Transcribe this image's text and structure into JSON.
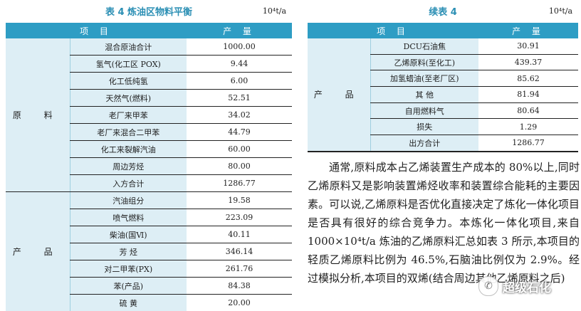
{
  "table4": {
    "caption": "表 4  炼油区物料平衡",
    "unit": "10⁴t/a",
    "header": {
      "item": "项  目",
      "output": "产  量"
    },
    "groups": [
      {
        "label": "原 料",
        "rows": [
          {
            "name": "混合原油合计",
            "value": "1000.00"
          },
          {
            "name": "氢气(化工区 POX)",
            "value": "9.44"
          },
          {
            "name": "化工低纯氢",
            "value": "6.00"
          },
          {
            "name": "天然气(燃料)",
            "value": "52.51"
          },
          {
            "name": "老厂来甲苯",
            "value": "34.02"
          },
          {
            "name": "老厂来混合二甲苯",
            "value": "44.79"
          },
          {
            "name": "化工来裂解汽油",
            "value": "60.00"
          },
          {
            "name": "周边芳烃",
            "value": "80.00"
          },
          {
            "name": "入方合计",
            "value": "1286.77"
          }
        ]
      },
      {
        "label": "产 品",
        "rows": [
          {
            "name": "汽油组分",
            "value": "19.58"
          },
          {
            "name": "喷气燃料",
            "value": "223.09"
          },
          {
            "name": "柴油(国Ⅵ)",
            "value": "40.11"
          },
          {
            "name": "芳 烃",
            "value": "346.14"
          },
          {
            "name": "对二甲苯(PX)",
            "value": "261.76"
          },
          {
            "name": "苯(产品)",
            "value": "84.38"
          },
          {
            "name": "硫 黄",
            "value": "20.00"
          }
        ]
      }
    ]
  },
  "table4cont": {
    "caption": "续表 4",
    "unit": "10⁴t/a",
    "header": {
      "item": "项  目",
      "output": "产  量"
    },
    "group_label": "产 品",
    "rows": [
      {
        "name": "DCU石油焦",
        "value": "30.91"
      },
      {
        "name": "乙烯原料(至化工)",
        "value": "439.37"
      },
      {
        "name": "加氢蜡油(至老厂区)",
        "value": "85.62"
      },
      {
        "name": "其 他",
        "value": "81.94"
      },
      {
        "name": "自用燃料气",
        "value": "80.64"
      },
      {
        "name": "损失",
        "value": "1.29"
      },
      {
        "name": "出方合计",
        "value": "1286.77"
      }
    ]
  },
  "paragraph": "通常,原料成本占乙烯装置生产成本的 80%以上,同时乙烯原料又是影响装置烯烃收率和装置综合能耗的主要因素。可以说,乙烯原料是否优化直接决定了炼化一体化项目是否具有很好的综合竞争力。本炼化一体化项目,来自 1000×10⁴t/a 炼油的乙烯原料汇总如表 3 所示,本项目的轻质乙烯原料比例为 46.5%,石脑油比例仅为 2.9%。经过模拟分析,本项目的双烯(结合周边其他乙烯原料之后)",
  "watermark": {
    "icon": "wechat-icon",
    "text": "超级石化"
  }
}
